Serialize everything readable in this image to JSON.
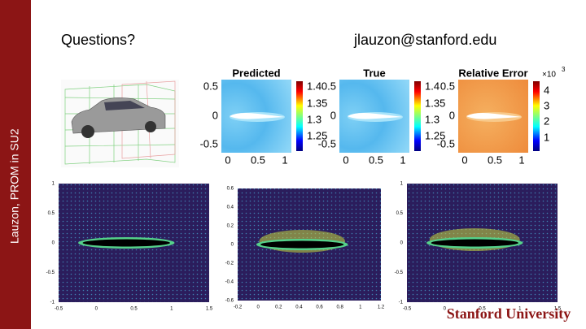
{
  "sidebar": "Lauzon, PROM in SU2",
  "heading": "Questions?",
  "email": "jlauzon@stanford.edu",
  "contour_panels": [
    {
      "title": "Predicted",
      "yticks": [
        "0.5",
        "0",
        "-0.5"
      ],
      "xticks": [
        "0",
        "0.5",
        "1"
      ],
      "colorbar": [
        "1.4",
        "1.35",
        "1.3",
        "1.25"
      ]
    },
    {
      "title": "True",
      "yticks": [
        "0.5",
        "0",
        "-0.5"
      ],
      "xticks": [
        "0",
        "0.5",
        "1"
      ],
      "colorbar": [
        "1.4",
        "1.35",
        "1.3",
        "1.25"
      ]
    },
    {
      "title": "Relative Error",
      "exponent": "×10",
      "exponent_power": "3",
      "yticks": [
        "0.5",
        "0",
        "-0.5"
      ],
      "xticks": [
        "0",
        "0.5",
        "1"
      ],
      "colorbar": [
        "4",
        "3",
        "2",
        "1"
      ]
    }
  ],
  "scatter_panels": [
    {
      "yticks": [
        "1",
        "0.5",
        "0",
        "-0.5",
        "-1"
      ],
      "xticks": [
        "-0.5",
        "0",
        "0.5",
        "1",
        "1.5"
      ]
    },
    {
      "yticks": [
        "0.6",
        "0.4",
        "0.2",
        "0",
        "-0.2",
        "-0.4",
        "-0.6"
      ],
      "xticks": [
        "-0.2",
        "0",
        "0.2",
        "0.4",
        "0.6",
        "0.8",
        "1",
        "1.2"
      ]
    },
    {
      "yticks": [
        "1",
        "0.5",
        "0",
        "-0.5",
        "-1"
      ],
      "xticks": [
        "-0.5",
        "0",
        "0.5",
        "1",
        "1.5"
      ]
    }
  ],
  "logo": "Stanford University"
}
